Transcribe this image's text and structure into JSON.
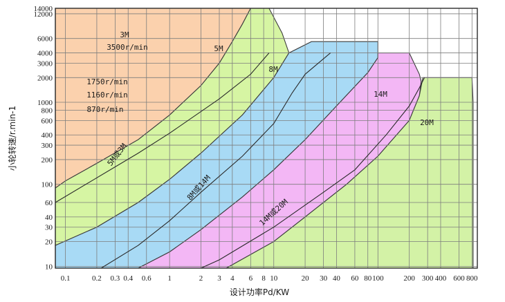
{
  "chart_data": {
    "type": "area",
    "title": "",
    "xlabel": "设计功率Pd/KW",
    "ylabel": "小轮转速/r.min-1",
    "xscale": "log",
    "yscale": "log",
    "xlim": [
      0.08,
      900
    ],
    "ylim": [
      9.5,
      14000
    ],
    "x_ticks": [
      "0.1",
      "0.2",
      "0.3",
      "0.4",
      "0.6",
      "1",
      "2",
      "3",
      "4",
      "6",
      "8",
      "10",
      "20",
      "30",
      "40",
      "60",
      "80",
      "100",
      "200",
      "300",
      "400",
      "600",
      "800"
    ],
    "x_tick_values": [
      0.1,
      0.2,
      0.3,
      0.4,
      0.6,
      1,
      2,
      3,
      4,
      6,
      8,
      10,
      20,
      30,
      40,
      60,
      80,
      100,
      200,
      300,
      400,
      600,
      800
    ],
    "y_ticks": [
      "10",
      "20",
      "30",
      "40",
      "60",
      "100",
      "200",
      "300",
      "400",
      "600",
      "800",
      "1000",
      "2000",
      "3000",
      "4000",
      "6000",
      "12000",
      "14000"
    ],
    "y_tick_values": [
      10,
      20,
      30,
      40,
      60,
      100,
      200,
      300,
      400,
      600,
      800,
      1000,
      2000,
      3000,
      4000,
      6000,
      12000,
      14000
    ],
    "zones": [
      {
        "name": "3M",
        "color": "#fbd1ad",
        "outline": [
          [
            0.08,
            90
          ],
          [
            0.1,
            110
          ],
          [
            0.2,
            180
          ],
          [
            0.5,
            350
          ],
          [
            1,
            700
          ],
          [
            2,
            1600
          ],
          [
            3,
            3000
          ],
          [
            4,
            5500
          ],
          [
            5,
            9000
          ],
          [
            6,
            14000
          ],
          [
            0.08,
            14000
          ]
        ]
      },
      {
        "name": "5M",
        "color": "#d6f5a3",
        "outline": [
          [
            0.08,
            18
          ],
          [
            0.2,
            30
          ],
          [
            0.5,
            60
          ],
          [
            1,
            115
          ],
          [
            2,
            240
          ],
          [
            5,
            700
          ],
          [
            10,
            2000
          ],
          [
            14,
            4000
          ],
          [
            12,
            7000
          ],
          [
            9,
            14000
          ],
          [
            6,
            14000
          ],
          [
            5,
            9000
          ],
          [
            4,
            5500
          ],
          [
            3,
            3000
          ],
          [
            2,
            1600
          ],
          [
            1,
            700
          ],
          [
            0.5,
            350
          ],
          [
            0.2,
            180
          ],
          [
            0.1,
            110
          ],
          [
            0.08,
            90
          ]
        ]
      },
      {
        "name": "8M",
        "color": "#a8daf5",
        "outline": [
          [
            0.1,
            9.5
          ],
          [
            0.5,
            9.5
          ],
          [
            1,
            15
          ],
          [
            2,
            28
          ],
          [
            5,
            70
          ],
          [
            10,
            150
          ],
          [
            20,
            350
          ],
          [
            40,
            900
          ],
          [
            80,
            2300
          ],
          [
            100,
            3500
          ],
          [
            100,
            5500
          ],
          [
            23,
            5500
          ],
          [
            14,
            4000
          ],
          [
            10,
            2000
          ],
          [
            5,
            700
          ],
          [
            2,
            240
          ],
          [
            1,
            115
          ],
          [
            0.5,
            60
          ],
          [
            0.2,
            30
          ],
          [
            0.08,
            18
          ],
          [
            0.08,
            9.5
          ]
        ]
      },
      {
        "name": "14M",
        "color": "#f3b7f5",
        "outline": [
          [
            0.5,
            9.5
          ],
          [
            3.5,
            9.5
          ],
          [
            10,
            20
          ],
          [
            20,
            40
          ],
          [
            50,
            100
          ],
          [
            100,
            220
          ],
          [
            200,
            600
          ],
          [
            250,
            1200
          ],
          [
            260,
            1800
          ],
          [
            250,
            2200
          ],
          [
            200,
            4000
          ],
          [
            100,
            4000
          ],
          [
            100,
            3500
          ],
          [
            80,
            2300
          ],
          [
            40,
            900
          ],
          [
            20,
            350
          ],
          [
            10,
            150
          ],
          [
            5,
            70
          ],
          [
            2,
            28
          ],
          [
            1,
            15
          ],
          [
            0.5,
            9.5
          ]
        ]
      },
      {
        "name": "20M",
        "color": "#d3f2a6",
        "outline": [
          [
            3.5,
            9.5
          ],
          [
            820,
            9.5
          ],
          [
            820,
            1000
          ],
          [
            800,
            2000
          ],
          [
            270,
            2000
          ],
          [
            250,
            1200
          ],
          [
            200,
            600
          ],
          [
            100,
            220
          ],
          [
            50,
            100
          ],
          [
            20,
            40
          ],
          [
            10,
            20
          ],
          [
            3.5,
            9.5
          ]
        ]
      }
    ],
    "boundaries": [
      {
        "name": "5M或3M",
        "points": [
          [
            0.08,
            60
          ],
          [
            0.2,
            120
          ],
          [
            0.5,
            240
          ],
          [
            1,
            420
          ],
          [
            3,
            1100
          ],
          [
            6,
            2200
          ],
          [
            9,
            4000
          ]
        ]
      },
      {
        "name": "8M或14M",
        "points": [
          [
            0.22,
            9.5
          ],
          [
            0.5,
            18
          ],
          [
            1,
            36
          ],
          [
            2,
            80
          ],
          [
            5,
            220
          ],
          [
            10,
            550
          ],
          [
            15,
            1300
          ],
          [
            20,
            2200
          ],
          [
            35,
            4000
          ]
        ]
      },
      {
        "name": "14M或20M",
        "points": [
          [
            2,
            9.5
          ],
          [
            3,
            12
          ],
          [
            10,
            30
          ],
          [
            30,
            80
          ],
          [
            60,
            150
          ],
          [
            120,
            400
          ],
          [
            200,
            900
          ],
          [
            250,
            1500
          ],
          [
            280,
            2000
          ]
        ]
      }
    ],
    "annotations": [
      "3M",
      "3500r/min",
      "5M",
      "8M",
      "1750r/min",
      "1160r/min",
      "870r/min",
      "14M",
      "20M",
      "5M或3M",
      "8M或14M",
      "14M或20M"
    ]
  }
}
